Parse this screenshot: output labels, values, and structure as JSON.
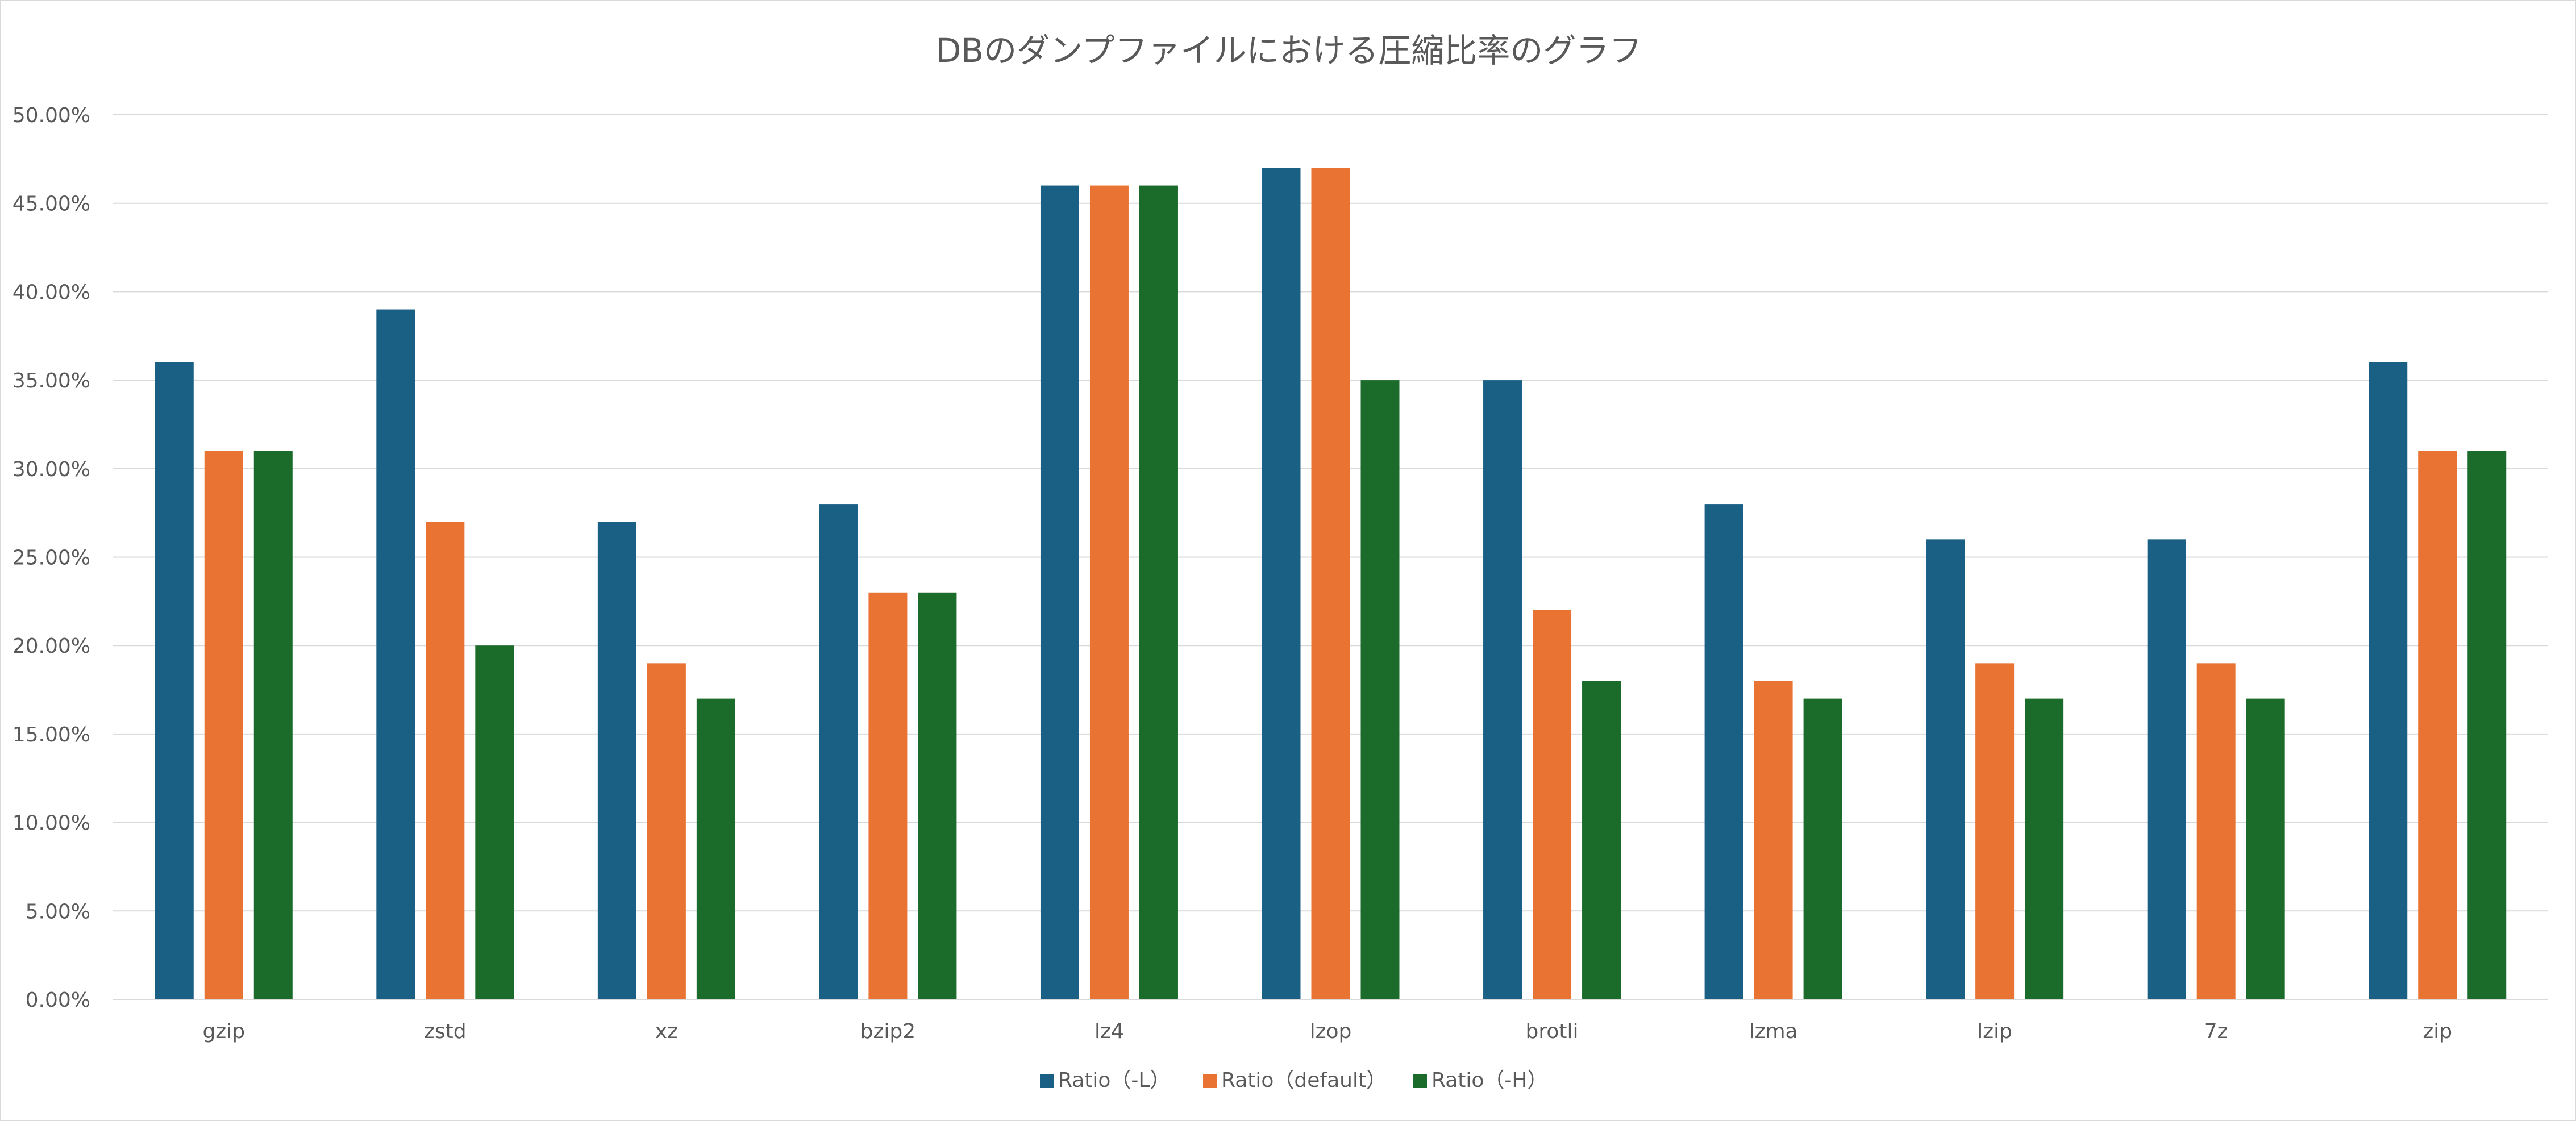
{
  "chart_data": {
    "type": "bar",
    "title": "DBのダンプファイルにおける圧縮比率のグラフ",
    "xlabel": "",
    "ylabel": "",
    "categories": [
      "gzip",
      "zstd",
      "xz",
      "bzip2",
      "lz4",
      "lzop",
      "brotli",
      "lzma",
      "lzip",
      "7z",
      "zip"
    ],
    "series": [
      {
        "name": "Ratio（-L）",
        "color": "#1a6084",
        "values": [
          0.36,
          0.39,
          0.27,
          0.28,
          0.46,
          0.47,
          0.35,
          0.28,
          0.26,
          0.26,
          0.36
        ]
      },
      {
        "name": "Ratio（default）",
        "color": "#e97333",
        "values": [
          0.31,
          0.27,
          0.19,
          0.23,
          0.46,
          0.47,
          0.22,
          0.18,
          0.19,
          0.19,
          0.31
        ]
      },
      {
        "name": "Ratio（-H）",
        "color": "#1b6b2a",
        "values": [
          0.31,
          0.2,
          0.17,
          0.23,
          0.46,
          0.35,
          0.18,
          0.17,
          0.17,
          0.17,
          0.31
        ]
      }
    ],
    "ylim": [
      0,
      0.5
    ],
    "y_ticks": [
      "0.00%",
      "5.00%",
      "10.00%",
      "15.00%",
      "20.00%",
      "25.00%",
      "30.00%",
      "35.00%",
      "40.00%",
      "45.00%",
      "50.00%"
    ],
    "grid": true,
    "legend_position": "bottom"
  },
  "colors": {
    "gridline": "#d9d9d9",
    "text": "#595959",
    "border": "#d9d9d9"
  }
}
